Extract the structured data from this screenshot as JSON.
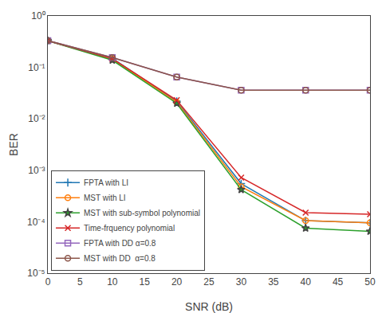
{
  "chart_data": {
    "type": "line",
    "x": [
      0,
      10,
      20,
      30,
      40,
      50
    ],
    "series": [
      {
        "name": "FPTA with LI",
        "marker": "cross-thin-open",
        "values": [
          0.33,
          0.15,
          0.022,
          0.00055,
          0.000105,
          9.5e-05
        ]
      },
      {
        "name": "MST with LI",
        "marker": "circle-open",
        "values": [
          0.33,
          0.145,
          0.021,
          0.00048,
          0.000105,
          9.5e-05
        ]
      },
      {
        "name": "MST with sub-symbol polynomial",
        "marker": "star",
        "values": [
          0.33,
          0.138,
          0.02,
          0.00042,
          7.5e-05,
          6.5e-05
        ]
      },
      {
        "name": "Time-frquency polynomial",
        "marker": "x-thin-open",
        "values": [
          0.33,
          0.148,
          0.023,
          0.00072,
          0.00015,
          0.00014
        ]
      },
      {
        "name": "FPTA with DD α=0.8",
        "marker": "square-open",
        "values": [
          0.33,
          0.155,
          0.065,
          0.036,
          0.036,
          0.036
        ]
      },
      {
        "name": "MST with DD  α=0.8",
        "marker": "circle-open",
        "values": [
          0.33,
          0.155,
          0.065,
          0.036,
          0.036,
          0.036
        ]
      }
    ],
    "xlabel": "SNR (dB)",
    "ylabel": "BER",
    "xlim": [
      0,
      50
    ],
    "ylim": [
      1e-05,
      1
    ],
    "xticks": [
      0,
      5,
      10,
      15,
      20,
      25,
      30,
      35,
      40,
      45,
      50
    ],
    "yticks": [
      {
        "value": 1e-05,
        "label": "10⁻⁵"
      },
      {
        "value": 0.0001,
        "label": "10⁻⁴"
      },
      {
        "value": 0.001,
        "label": "10⁻³"
      },
      {
        "value": 0.01,
        "label": "10⁻²"
      },
      {
        "value": 0.1,
        "label": "10⁻¹"
      },
      {
        "value": 1,
        "label": "10⁰"
      }
    ],
    "log": "y",
    "grid": false,
    "legend": "lower left"
  }
}
